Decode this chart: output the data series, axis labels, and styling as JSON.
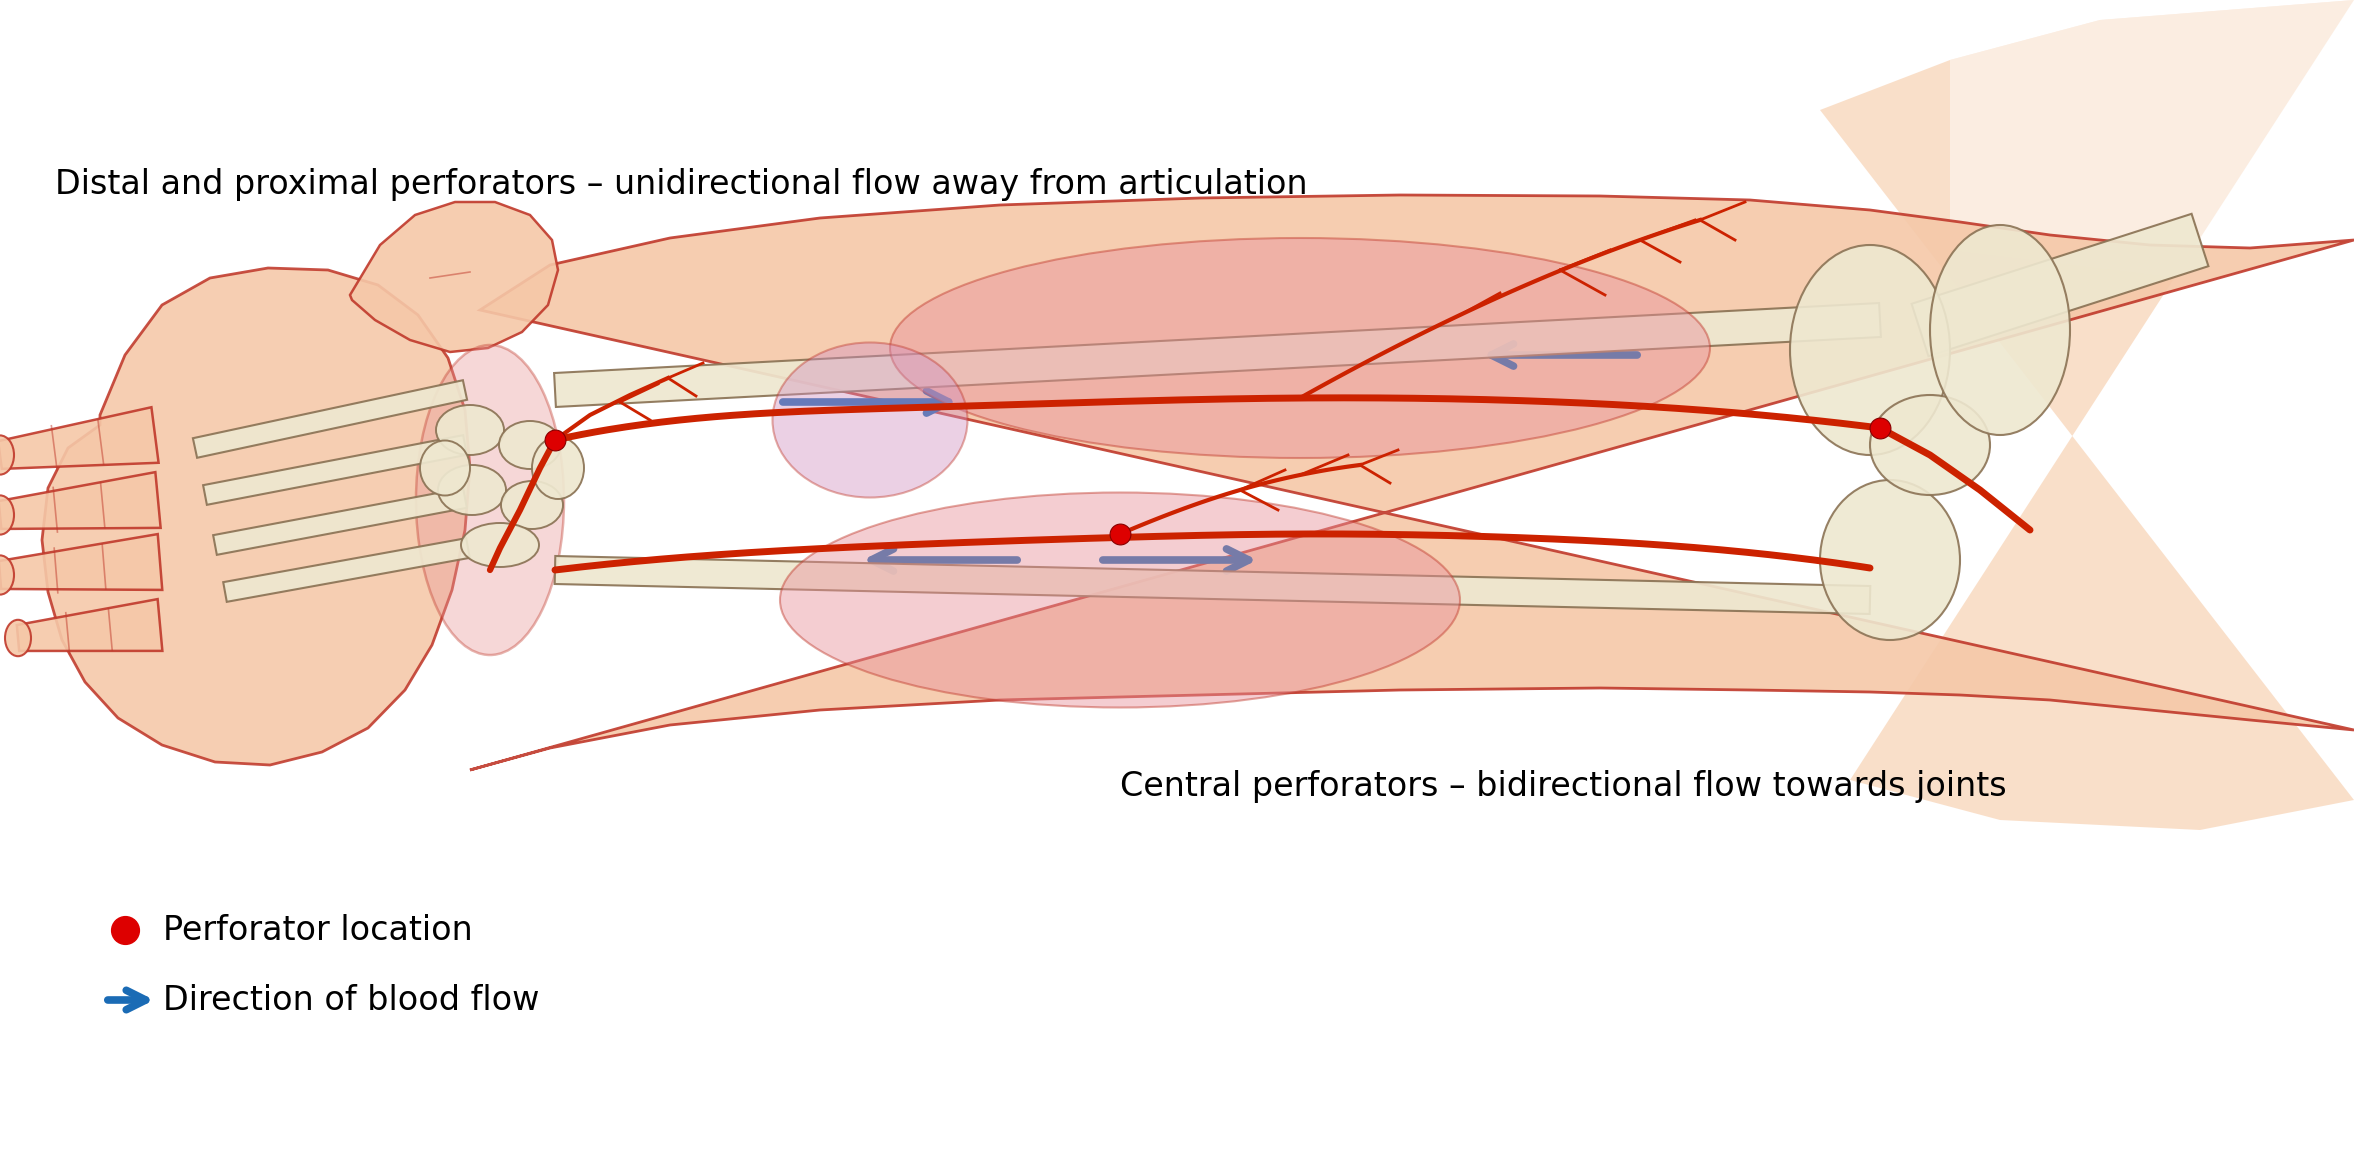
{
  "background_color": "#FFFFFF",
  "skin_fill": "#F5C8A8",
  "skin_fill2": "#F8D5B8",
  "skin_edge": "#C0392B",
  "bone_fill": "#EEE8D0",
  "bone_edge": "#8B7355",
  "muscle_pink": "#E8909A",
  "muscle_alpha": 0.5,
  "artery_color": "#CC2200",
  "arrow_color": "#1A6BB5",
  "perforator_color": "#DD0000",
  "upper_arm_fill": "#F8D5B8",
  "label_upper": "Distal and proximal perforators – unidirectional flow away from articulation",
  "label_lower": "Central perforators – bidirectional flow towards joints",
  "legend_dot": "Perforator location",
  "legend_arrow": "Direction of blood flow",
  "label_fontsize": 24,
  "legend_fontsize": 24
}
